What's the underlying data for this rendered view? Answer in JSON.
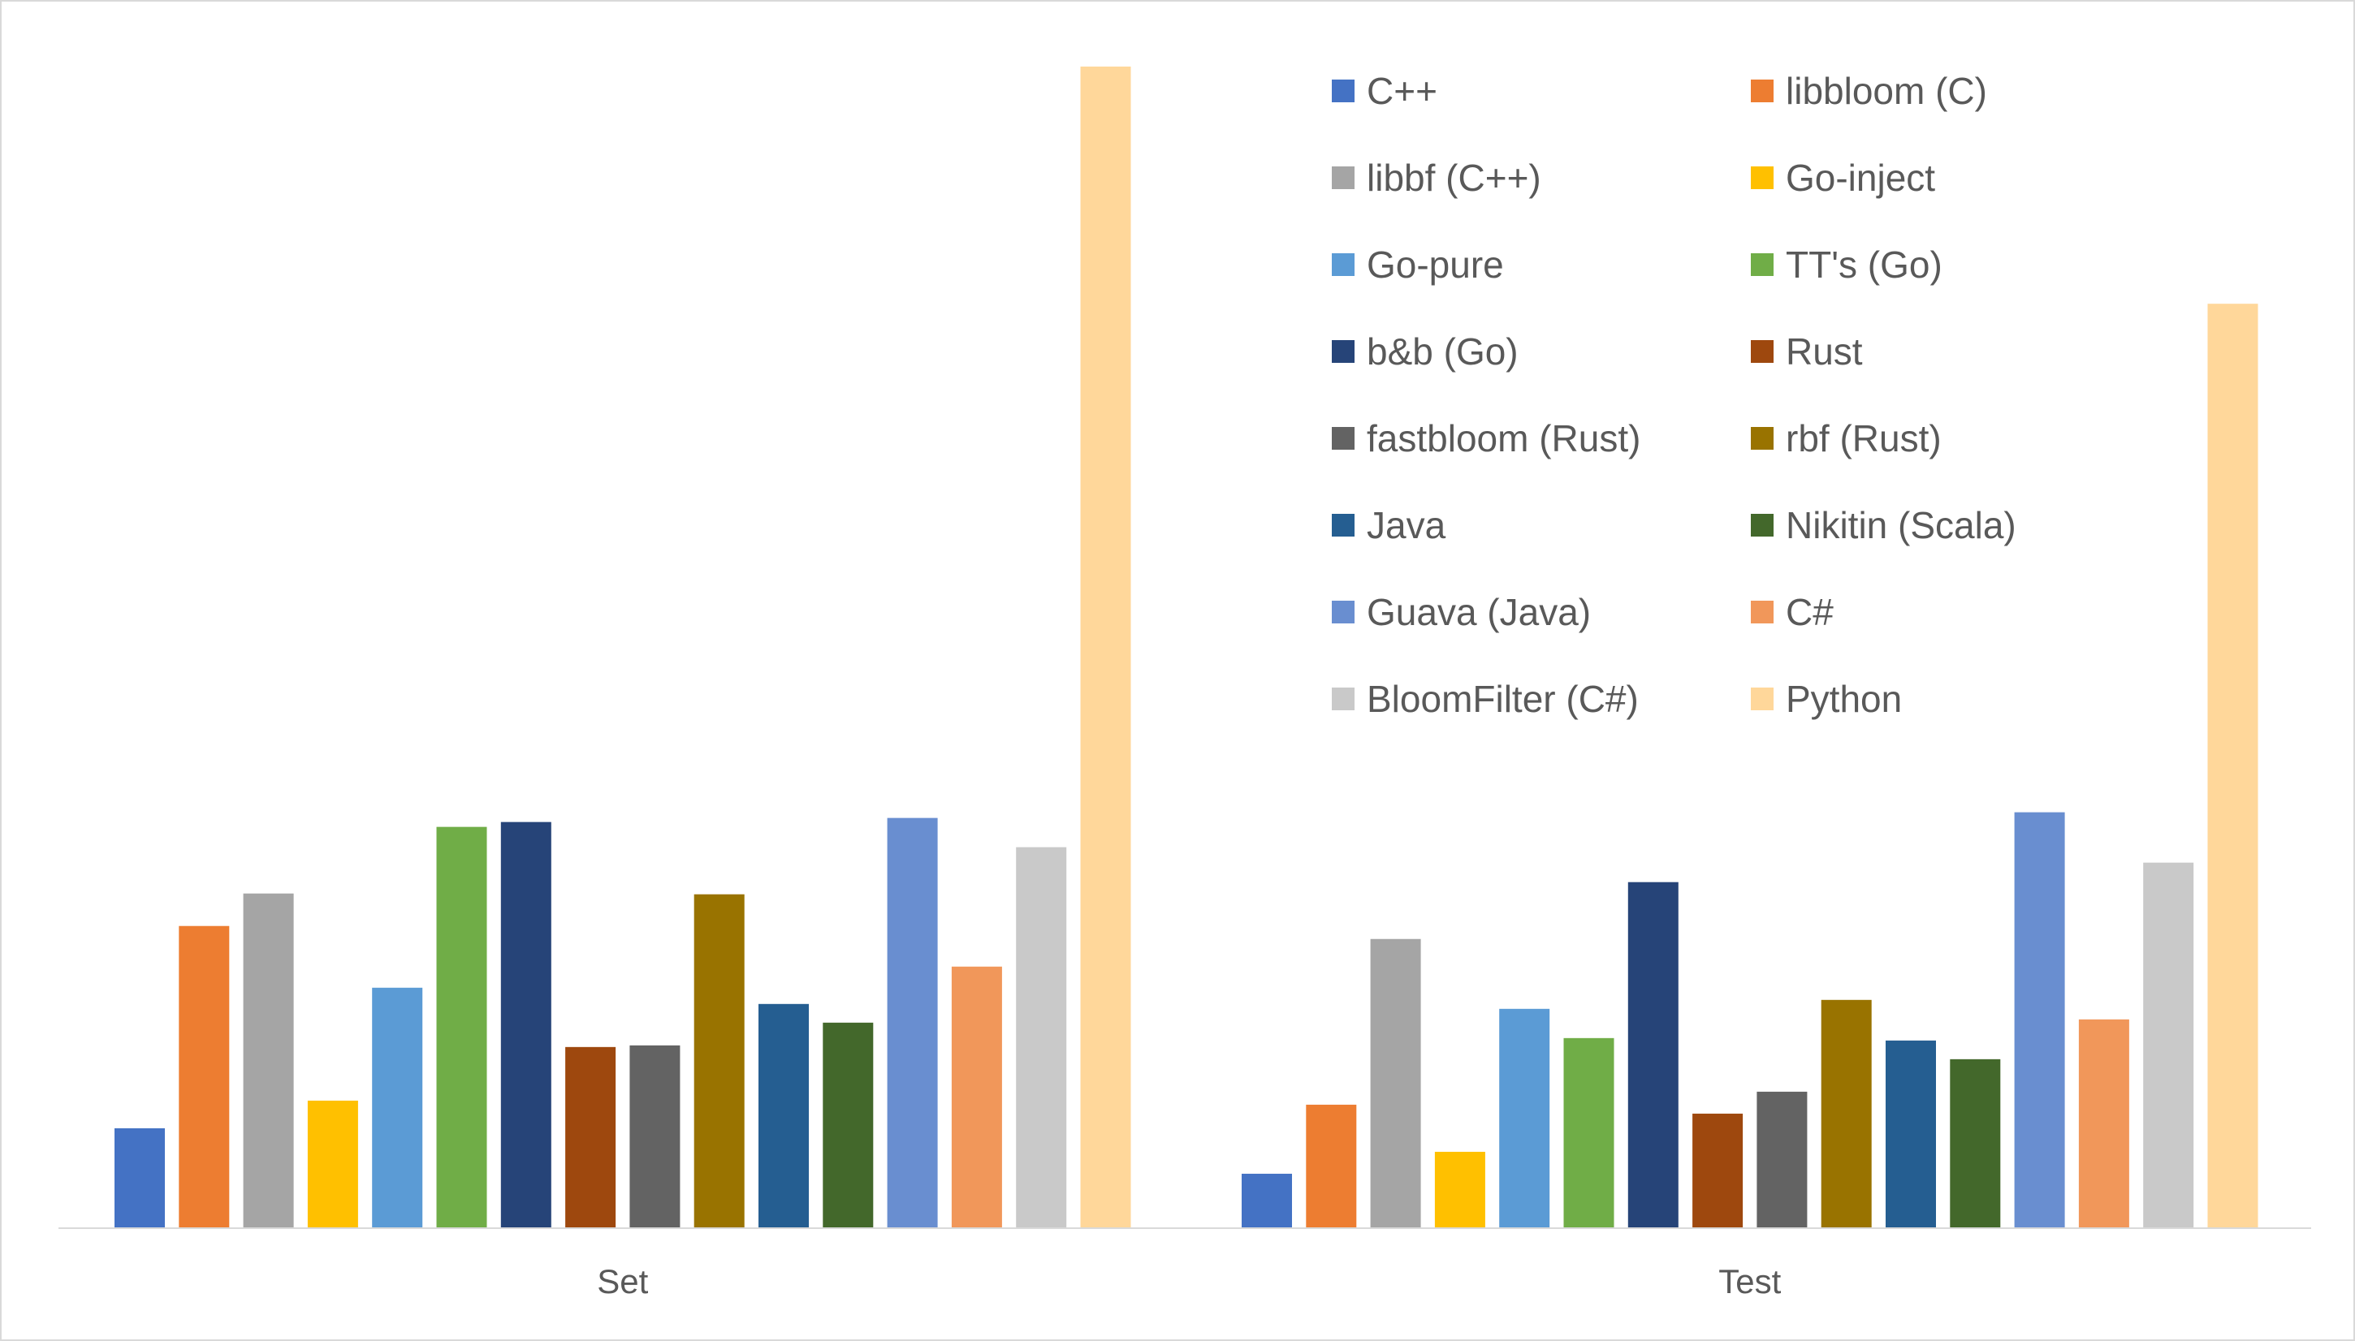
{
  "chart_data": {
    "type": "bar",
    "categories": [
      "Set",
      "Test"
    ],
    "title": "",
    "xlabel": "",
    "ylabel": "",
    "y_axis_shown": false,
    "grid": false,
    "legend_position": "top-right",
    "series": [
      {
        "name": "C++",
        "color": "#4472C4",
        "values": [
          123,
          67
        ]
      },
      {
        "name": "libbloom (C)",
        "color": "#ED7D31",
        "values": [
          372,
          152
        ]
      },
      {
        "name": "libbf (C++)",
        "color": "#A5A5A5",
        "values": [
          412,
          356
        ]
      },
      {
        "name": "Go-inject",
        "color": "#FFC000",
        "values": [
          157,
          94
        ]
      },
      {
        "name": "Go-pure",
        "color": "#5B9BD5",
        "values": [
          296,
          270
        ]
      },
      {
        "name": "TT's (Go)",
        "color": "#70AD47",
        "values": [
          494,
          234
        ]
      },
      {
        "name": "b&b (Go)",
        "color": "#264478",
        "values": [
          500,
          426
        ]
      },
      {
        "name": "Rust",
        "color": "#9E480E",
        "values": [
          223,
          141
        ]
      },
      {
        "name": "fastbloom (Rust)",
        "color": "#636363",
        "values": [
          225,
          168
        ]
      },
      {
        "name": "rbf (Rust)",
        "color": "#997300",
        "values": [
          411,
          281
        ]
      },
      {
        "name": "Java",
        "color": "#255E91",
        "values": [
          276,
          231
        ]
      },
      {
        "name": "Nikitin (Scala)",
        "color": "#43682B",
        "values": [
          253,
          208
        ]
      },
      {
        "name": "Guava (Java)",
        "color": "#698ED0",
        "values": [
          505,
          512
        ]
      },
      {
        "name": "C#",
        "color": "#F1975A",
        "values": [
          322,
          257
        ]
      },
      {
        "name": "BloomFilter (C#)",
        "color": "#C9C9C9",
        "values": [
          469,
          450
        ]
      },
      {
        "name": "Python",
        "color": "#FFD79A",
        "values": [
          1430,
          1138
        ]
      }
    ]
  }
}
